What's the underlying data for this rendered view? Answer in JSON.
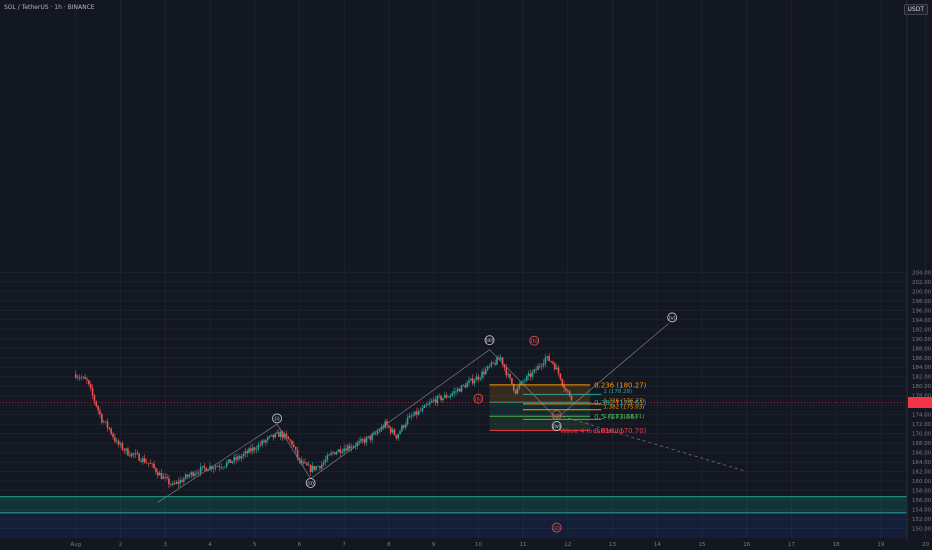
{
  "header": {
    "symbol_line": "SOL / TetherUS · 1h · BINANCE"
  },
  "currency_badge": "USDT",
  "chart_data": {
    "type": "candlestick",
    "title": "SOL / TetherUS · 1h · BINANCE",
    "y_axis": {
      "position": "right",
      "ylim": [
        149,
        206
      ],
      "ticks": [
        150,
        152,
        154,
        156,
        158,
        160,
        162,
        164,
        166,
        168,
        170,
        172,
        174,
        176,
        178,
        180,
        182,
        184,
        186,
        188,
        190,
        192,
        194,
        196,
        198,
        200,
        202,
        204
      ]
    },
    "x_axis": {
      "ticks": [
        "Aug",
        "2",
        "3",
        "4",
        "5",
        "6",
        "7",
        "8",
        "9",
        "10",
        "11",
        "12",
        "13",
        "14",
        "15",
        "16",
        "17",
        "18",
        "19",
        "20"
      ]
    },
    "price_path": [
      [
        "Aug 1 00:00",
        182.5
      ],
      [
        "Aug 1 06:00",
        181
      ],
      [
        "Aug 1 10:00",
        177
      ],
      [
        "Aug 1 14:00",
        173
      ],
      [
        "Aug 1 18:00",
        171
      ],
      [
        "Aug 1 22:00",
        168
      ],
      [
        "Aug 2 04:00",
        166
      ],
      [
        "Aug 2 10:00",
        165
      ],
      [
        "Aug 2 16:00",
        163.5
      ],
      [
        "Aug 2 22:00",
        161
      ],
      [
        "Aug 3 04:00",
        159
      ],
      [
        "Aug 3 10:00",
        160.5
      ],
      [
        "Aug 3 16:00",
        162
      ],
      [
        "Aug 4 00:00",
        163
      ],
      [
        "Aug 4 08:00",
        163.5
      ],
      [
        "Aug 4 16:00",
        165
      ],
      [
        "Aug 5 00:00",
        167
      ],
      [
        "Aug 5 08:00",
        169
      ],
      [
        "Aug 5 14:00",
        170
      ],
      [
        "Aug 5 20:00",
        168
      ],
      [
        "Aug 6 00:00",
        164
      ],
      [
        "Aug 6 06:00",
        162.5
      ],
      [
        "Aug 6 12:00",
        163.5
      ],
      [
        "Aug 6 18:00",
        166
      ],
      [
        "Aug 7 00:00",
        167
      ],
      [
        "Aug 7 08:00",
        168
      ],
      [
        "Aug 7 16:00",
        169.5
      ],
      [
        "Aug 7 22:00",
        172
      ],
      [
        "Aug 8 04:00",
        169.5
      ],
      [
        "Aug 8 10:00",
        173
      ],
      [
        "Aug 8 18:00",
        175
      ],
      [
        "Aug 9 00:00",
        177
      ],
      [
        "Aug 9 08:00",
        178
      ],
      [
        "Aug 9 16:00",
        180
      ],
      [
        "Aug 10 00:00",
        182
      ],
      [
        "Aug 10 06:00",
        184
      ],
      [
        "Aug 10 12:00",
        186
      ],
      [
        "Aug 10 16:00",
        182
      ],
      [
        "Aug 10 20:00",
        179
      ],
      [
        "Aug 11 00:00",
        181
      ],
      [
        "Aug 11 06:00",
        183
      ],
      [
        "Aug 11 12:00",
        186
      ],
      [
        "Aug 11 16:00",
        185
      ],
      [
        "Aug 11 20:00",
        182
      ],
      [
        "Aug 11 23:00",
        179
      ],
      [
        "Aug 12 02:00",
        177.8
      ]
    ],
    "current_price": 176.6,
    "wave_labels": [
      {
        "label": "(i)",
        "x": "Aug 5 12:00",
        "y": 173.2,
        "color": "#d1d4dc"
      },
      {
        "label": "(ii)",
        "x": "Aug 6 06:00",
        "y": 159.6,
        "color": "#d1d4dc"
      },
      {
        "label": "(iii)",
        "x": "Aug 10 06:00",
        "y": 189.7,
        "color": "#d1d4dc"
      },
      {
        "label": "(iv)",
        "x": "Aug 11 18:00",
        "y": 171.6,
        "color": "#d1d4dc"
      },
      {
        "label": "(v)",
        "x": "Aug 14 08:00",
        "y": 194.5,
        "color": "#d1d4dc"
      },
      {
        "label": "(a)",
        "x": "Aug 10 00:00",
        "y": 177.4,
        "color": "#ef5350"
      },
      {
        "label": "(b)",
        "x": "Aug 11 06:00",
        "y": 189.6,
        "color": "#ef5350"
      },
      {
        "label": "(c)",
        "x": "Aug 11 18:00",
        "y": 173.9,
        "color": "#ef5350"
      },
      {
        "label": "(z)",
        "x": "Aug 11 18:00",
        "y": 150.2,
        "color": "#ef5350"
      }
    ],
    "wave_path": [
      [
        "Aug 2 20:00",
        155.5
      ],
      [
        "Aug 5 12:00",
        172.0
      ],
      [
        "Aug 6 06:00",
        160.5
      ],
      [
        "Aug 10 06:00",
        187.7
      ],
      [
        "Aug 11 18:00",
        173.2
      ],
      [
        "Aug 14 06:00",
        193.2
      ]
    ],
    "projection_dashed": [
      [
        "Aug 11 18:00",
        174
      ],
      [
        "Aug 16 00:00",
        162
      ]
    ],
    "fib_retracement": [
      {
        "label": "0.236 (180.27)",
        "level": 180.27,
        "color": "#ff9800"
      },
      {
        "label": "0.382 (176.61)",
        "level": 176.61,
        "color": "#26a69a"
      },
      {
        "label": "0.5 (173.66)",
        "level": 173.66,
        "color": "#4caf50"
      },
      {
        "label": "0.618 (170.70)",
        "level": 170.7,
        "color": "#f23645"
      }
    ],
    "fib_extension": [
      {
        "label": "1 (178.28)",
        "level": 178.28,
        "color": "#26a69a"
      },
      {
        "label": "1.236 (176.27)",
        "level": 176.27,
        "color": "#ff9800"
      },
      {
        "label": "1.382 (175.03)",
        "level": 175.03,
        "color": "#ff9800"
      },
      {
        "label": "1.618 (173.01)",
        "level": 173.01,
        "color": "#4caf50"
      }
    ],
    "invalidation_label": "Wave 4 Invalidation",
    "support_zone": {
      "top": 156.7,
      "bottom": 153.3,
      "color": "#089981"
    }
  }
}
